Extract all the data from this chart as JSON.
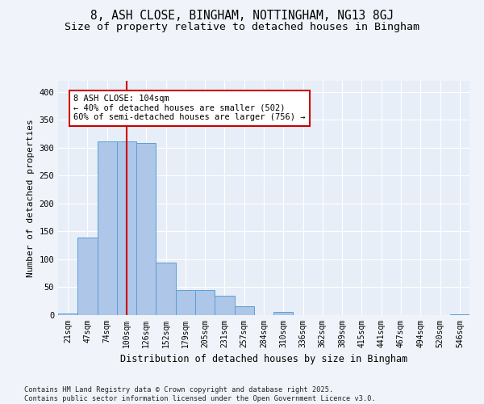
{
  "title": "8, ASH CLOSE, BINGHAM, NOTTINGHAM, NG13 8GJ",
  "subtitle": "Size of property relative to detached houses in Bingham",
  "xlabel": "Distribution of detached houses by size in Bingham",
  "ylabel": "Number of detached properties",
  "categories": [
    "21sqm",
    "47sqm",
    "74sqm",
    "100sqm",
    "126sqm",
    "152sqm",
    "179sqm",
    "205sqm",
    "231sqm",
    "257sqm",
    "284sqm",
    "310sqm",
    "336sqm",
    "362sqm",
    "389sqm",
    "415sqm",
    "441sqm",
    "467sqm",
    "494sqm",
    "520sqm",
    "546sqm"
  ],
  "values": [
    3,
    139,
    311,
    311,
    309,
    94,
    45,
    45,
    35,
    16,
    0,
    6,
    0,
    0,
    0,
    0,
    0,
    0,
    0,
    0,
    2
  ],
  "bar_color": "#aec6e8",
  "bar_edge_color": "#5a9fd4",
  "vline_x_index": 3,
  "vline_color": "#cc0000",
  "annotation_text": "8 ASH CLOSE: 104sqm\n← 40% of detached houses are smaller (502)\n60% of semi-detached houses are larger (756) →",
  "annotation_box_color": "#cc0000",
  "annotation_text_color": "#000000",
  "footer_text": "Contains HM Land Registry data © Crown copyright and database right 2025.\nContains public sector information licensed under the Open Government Licence v3.0.",
  "ylim": [
    0,
    420
  ],
  "yticks": [
    0,
    50,
    100,
    150,
    200,
    250,
    300,
    350,
    400
  ],
  "bg_color": "#f0f4fa",
  "plot_bg_color": "#e8eef8",
  "title_fontsize": 10.5,
  "subtitle_fontsize": 9.5,
  "tick_fontsize": 7,
  "ylabel_fontsize": 8,
  "xlabel_fontsize": 8.5
}
